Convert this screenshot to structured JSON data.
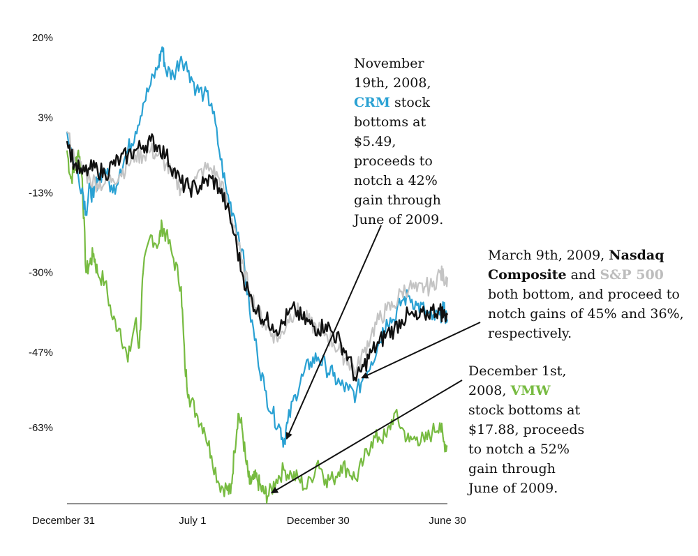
{
  "chart_data": {
    "type": "line",
    "title": "",
    "xlabel": "",
    "ylabel": "",
    "ylim": [
      -80,
      20
    ],
    "y_ticks": [
      "20%",
      "3%",
      "-13%",
      "-30%",
      "-47%",
      "-63%"
    ],
    "y_tick_values": [
      20,
      3,
      -13,
      -30,
      -47,
      -63
    ],
    "x_ticks": [
      "December 31",
      "July 1",
      "December 30",
      "June 30"
    ],
    "x_tick_values": [
      0,
      0.33,
      0.66,
      1.0
    ],
    "series": [
      {
        "name": "VMW",
        "color": "#77bb41",
        "points": [
          [
            0,
            -4
          ],
          [
            0.01,
            -10
          ],
          [
            0.02,
            -8
          ],
          [
            0.03,
            -4
          ],
          [
            0.04,
            -10
          ],
          [
            0.05,
            -30
          ],
          [
            0.06,
            -28
          ],
          [
            0.07,
            -26
          ],
          [
            0.08,
            -30
          ],
          [
            0.1,
            -32
          ],
          [
            0.12,
            -40
          ],
          [
            0.14,
            -42
          ],
          [
            0.16,
            -49
          ],
          [
            0.18,
            -40
          ],
          [
            0.19,
            -46
          ],
          [
            0.2,
            -30
          ],
          [
            0.22,
            -22
          ],
          [
            0.24,
            -24
          ],
          [
            0.25,
            -20
          ],
          [
            0.26,
            -22
          ],
          [
            0.28,
            -27
          ],
          [
            0.3,
            -33
          ],
          [
            0.31,
            -50
          ],
          [
            0.32,
            -56
          ],
          [
            0.34,
            -60
          ],
          [
            0.36,
            -63
          ],
          [
            0.38,
            -69
          ],
          [
            0.4,
            -75
          ],
          [
            0.42,
            -76
          ],
          [
            0.43,
            -77
          ],
          [
            0.44,
            -68
          ],
          [
            0.45,
            -60
          ],
          [
            0.46,
            -63
          ],
          [
            0.47,
            -70
          ],
          [
            0.48,
            -75
          ],
          [
            0.49,
            -74
          ],
          [
            0.5,
            -74
          ],
          [
            0.51,
            -76
          ],
          [
            0.52,
            -77
          ],
          [
            0.53,
            -77.5
          ],
          [
            0.55,
            -74
          ],
          [
            0.57,
            -72
          ],
          [
            0.59,
            -73
          ],
          [
            0.61,
            -74
          ],
          [
            0.63,
            -76
          ],
          [
            0.66,
            -70
          ],
          [
            0.68,
            -74
          ],
          [
            0.7,
            -74
          ],
          [
            0.72,
            -71
          ],
          [
            0.74,
            -72
          ],
          [
            0.76,
            -74
          ],
          [
            0.78,
            -70
          ],
          [
            0.8,
            -66
          ],
          [
            0.82,
            -65
          ],
          [
            0.84,
            -65
          ],
          [
            0.86,
            -60
          ],
          [
            0.88,
            -63
          ],
          [
            0.9,
            -66
          ],
          [
            0.92,
            -65
          ],
          [
            0.94,
            -66
          ],
          [
            0.96,
            -64
          ],
          [
            0.98,
            -62
          ],
          [
            0.99,
            -66
          ],
          [
            1.0,
            -67
          ]
        ]
      },
      {
        "name": "CRM",
        "color": "#2aa1d3",
        "points": [
          [
            0,
            0
          ],
          [
            0.02,
            -7
          ],
          [
            0.04,
            -12
          ],
          [
            0.05,
            -17
          ],
          [
            0.06,
            -12
          ],
          [
            0.07,
            -14
          ],
          [
            0.08,
            -10
          ],
          [
            0.1,
            -8
          ],
          [
            0.12,
            -13
          ],
          [
            0.14,
            -8
          ],
          [
            0.16,
            -4
          ],
          [
            0.18,
            0
          ],
          [
            0.2,
            6
          ],
          [
            0.22,
            10
          ],
          [
            0.24,
            14
          ],
          [
            0.25,
            18
          ],
          [
            0.26,
            13
          ],
          [
            0.28,
            12
          ],
          [
            0.3,
            16
          ],
          [
            0.32,
            13
          ],
          [
            0.34,
            9
          ],
          [
            0.36,
            8
          ],
          [
            0.38,
            6
          ],
          [
            0.4,
            -4
          ],
          [
            0.42,
            -13
          ],
          [
            0.44,
            -18
          ],
          [
            0.46,
            -25
          ],
          [
            0.48,
            -38
          ],
          [
            0.5,
            -47
          ],
          [
            0.52,
            -55
          ],
          [
            0.54,
            -60
          ],
          [
            0.56,
            -63
          ],
          [
            0.57,
            -66
          ],
          [
            0.58,
            -62
          ],
          [
            0.6,
            -56
          ],
          [
            0.62,
            -52
          ],
          [
            0.64,
            -49
          ],
          [
            0.66,
            -48
          ],
          [
            0.68,
            -50
          ],
          [
            0.7,
            -52
          ],
          [
            0.72,
            -54
          ],
          [
            0.74,
            -55
          ],
          [
            0.76,
            -56
          ],
          [
            0.78,
            -52
          ],
          [
            0.8,
            -49
          ],
          [
            0.82,
            -45
          ],
          [
            0.84,
            -40
          ],
          [
            0.86,
            -40
          ],
          [
            0.88,
            -36
          ],
          [
            0.9,
            -35
          ],
          [
            0.92,
            -37
          ],
          [
            0.94,
            -38
          ],
          [
            0.96,
            -40
          ],
          [
            0.98,
            -39
          ],
          [
            0.99,
            -38
          ],
          [
            1.0,
            -40
          ]
        ]
      },
      {
        "name": "S&P 500",
        "color": "#c4c4c4",
        "points": [
          [
            0,
            0
          ],
          [
            0.02,
            -6
          ],
          [
            0.04,
            -8
          ],
          [
            0.06,
            -10
          ],
          [
            0.08,
            -11
          ],
          [
            0.1,
            -11
          ],
          [
            0.12,
            -10
          ],
          [
            0.14,
            -9
          ],
          [
            0.16,
            -7
          ],
          [
            0.18,
            -5
          ],
          [
            0.2,
            -5
          ],
          [
            0.22,
            -4
          ],
          [
            0.24,
            -5
          ],
          [
            0.26,
            -7
          ],
          [
            0.28,
            -10
          ],
          [
            0.3,
            -12
          ],
          [
            0.32,
            -11
          ],
          [
            0.34,
            -10
          ],
          [
            0.36,
            -8
          ],
          [
            0.38,
            -8
          ],
          [
            0.4,
            -10
          ],
          [
            0.42,
            -15
          ],
          [
            0.44,
            -20
          ],
          [
            0.46,
            -28
          ],
          [
            0.48,
            -34
          ],
          [
            0.5,
            -38
          ],
          [
            0.52,
            -41
          ],
          [
            0.54,
            -43
          ],
          [
            0.56,
            -44
          ],
          [
            0.58,
            -40
          ],
          [
            0.6,
            -38
          ],
          [
            0.62,
            -39
          ],
          [
            0.64,
            -41
          ],
          [
            0.66,
            -42
          ],
          [
            0.68,
            -43
          ],
          [
            0.7,
            -45
          ],
          [
            0.72,
            -47
          ],
          [
            0.74,
            -49
          ],
          [
            0.76,
            -51
          ],
          [
            0.78,
            -47
          ],
          [
            0.8,
            -43
          ],
          [
            0.82,
            -40
          ],
          [
            0.84,
            -38
          ],
          [
            0.86,
            -37
          ],
          [
            0.88,
            -34
          ],
          [
            0.9,
            -33
          ],
          [
            0.92,
            -34
          ],
          [
            0.94,
            -33
          ],
          [
            0.96,
            -33
          ],
          [
            0.98,
            -30
          ],
          [
            0.99,
            -31
          ],
          [
            1.0,
            -31
          ]
        ]
      },
      {
        "name": "Nasdaq Composite",
        "color": "#111111",
        "points": [
          [
            0,
            -2
          ],
          [
            0.02,
            -7
          ],
          [
            0.04,
            -9
          ],
          [
            0.06,
            -8
          ],
          [
            0.08,
            -8
          ],
          [
            0.1,
            -9
          ],
          [
            0.12,
            -7
          ],
          [
            0.14,
            -6
          ],
          [
            0.16,
            -5
          ],
          [
            0.18,
            -4
          ],
          [
            0.2,
            -3
          ],
          [
            0.22,
            -2
          ],
          [
            0.24,
            -3
          ],
          [
            0.26,
            -5
          ],
          [
            0.28,
            -8
          ],
          [
            0.3,
            -11
          ],
          [
            0.32,
            -12
          ],
          [
            0.34,
            -12
          ],
          [
            0.36,
            -11
          ],
          [
            0.38,
            -10
          ],
          [
            0.4,
            -12
          ],
          [
            0.42,
            -16
          ],
          [
            0.44,
            -22
          ],
          [
            0.46,
            -30
          ],
          [
            0.48,
            -35
          ],
          [
            0.5,
            -38
          ],
          [
            0.52,
            -40
          ],
          [
            0.54,
            -41
          ],
          [
            0.56,
            -42
          ],
          [
            0.58,
            -39
          ],
          [
            0.6,
            -38
          ],
          [
            0.62,
            -40
          ],
          [
            0.64,
            -41
          ],
          [
            0.66,
            -42
          ],
          [
            0.68,
            -41
          ],
          [
            0.7,
            -43
          ],
          [
            0.72,
            -45
          ],
          [
            0.74,
            -48
          ],
          [
            0.76,
            -53
          ],
          [
            0.78,
            -50
          ],
          [
            0.8,
            -47
          ],
          [
            0.82,
            -45
          ],
          [
            0.84,
            -43
          ],
          [
            0.86,
            -42
          ],
          [
            0.88,
            -40
          ],
          [
            0.9,
            -39
          ],
          [
            0.92,
            -40
          ],
          [
            0.94,
            -39
          ],
          [
            0.96,
            -38
          ],
          [
            0.98,
            -38
          ],
          [
            0.99,
            -39
          ],
          [
            1.0,
            -39
          ]
        ]
      }
    ],
    "annotations": [
      {
        "parts": [
          "November 19th, 2008, ",
          "CRM",
          " stock bottoms at $5.49, proceeds to notch a 42% gain through June of 2009."
        ],
        "highlight": {
          "text": "CRM",
          "color": "#2aa1d3"
        },
        "target": [
          0.57,
          -66
        ]
      },
      {
        "parts": [
          "March 9th, 2009, ",
          "Nasdaq Composite",
          " and ",
          "S&P 500",
          " both bottom, and proceed to notch gains of 45% and 36%, respectively."
        ],
        "highlight": {
          "text": "S&P 500",
          "color": "#bdbdbd"
        },
        "target": [
          0.76,
          -53
        ]
      },
      {
        "parts": [
          "December 1st, 2008, ",
          "VMW",
          " stock bottoms at $17.88, proceeds to notch a 52% gain through June of 2009."
        ],
        "highlight": {
          "text": "VMW",
          "color": "#77bb41"
        },
        "target": [
          0.53,
          -77.5
        ]
      }
    ]
  }
}
